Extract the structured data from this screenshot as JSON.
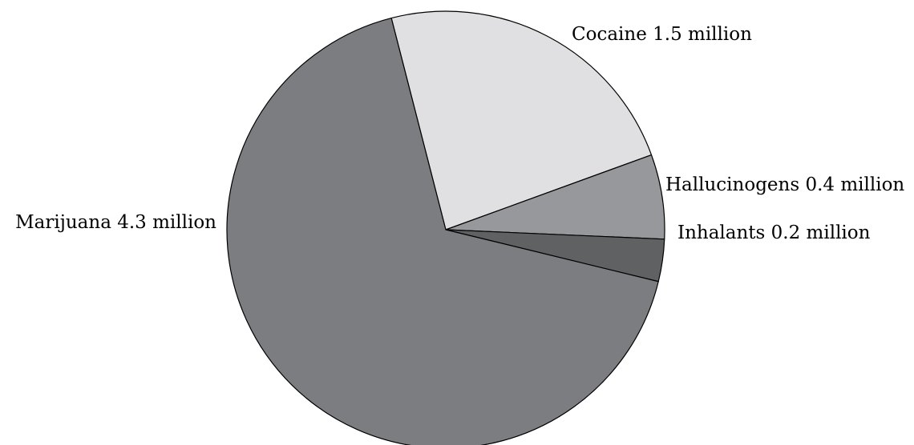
{
  "chart_data": {
    "type": "pie",
    "title": "",
    "start_angle_deg": -104.4,
    "direction": "clockwise",
    "slices": [
      {
        "label": "Cocaine",
        "value": 1.5,
        "value_text": "1.5 million",
        "color": "#e0e0e2",
        "label_anchor": "start"
      },
      {
        "label": "Hallucinogens",
        "value": 0.4,
        "value_text": "0.4 million",
        "color": "#97989b",
        "label_anchor": "start"
      },
      {
        "label": "Inhalants",
        "value": 0.2,
        "value_text": "0.2 million",
        "color": "#606163",
        "label_anchor": "start"
      },
      {
        "label": "Marijuana",
        "value": 4.3,
        "value_text": "4.3 million",
        "color": "#7c7d80",
        "label_anchor": "end"
      }
    ]
  }
}
